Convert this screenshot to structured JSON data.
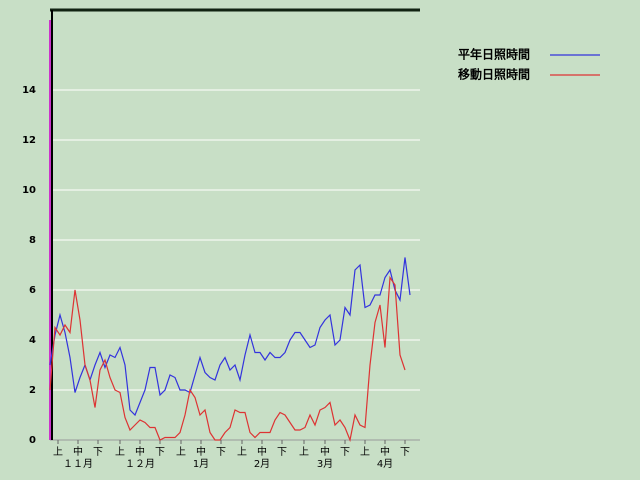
{
  "chart_data": {
    "type": "line",
    "series": [
      {
        "name": "平年日照時間",
        "color": "#3333dd",
        "values": [
          3.0,
          4.2,
          5.0,
          4.3,
          3.3,
          1.9,
          2.5,
          3.0,
          2.4,
          3.0,
          3.5,
          2.9,
          3.4,
          3.3,
          3.7,
          3.0,
          1.2,
          1.0,
          1.5,
          2.0,
          2.9,
          2.9,
          1.8,
          2.0,
          2.6,
          2.5,
          2.0,
          2.0,
          1.9,
          2.6,
          3.3,
          2.7,
          2.5,
          2.4,
          3.0,
          3.3,
          2.8,
          3.0,
          2.4,
          3.4,
          4.2,
          3.5,
          3.5,
          3.2,
          3.5,
          3.3,
          3.3,
          3.5,
          4.0,
          4.3,
          4.3,
          4.0,
          3.7,
          3.8,
          4.5,
          4.8,
          5.0,
          3.8,
          4.0,
          5.3,
          5.0,
          6.8,
          7.0,
          5.3,
          5.4,
          5.8,
          5.8,
          6.5,
          6.8,
          6.0,
          5.6,
          7.3,
          5.8
        ]
      },
      {
        "name": "移動日照時間",
        "color": "#dd3333",
        "values": [
          2.0,
          4.5,
          4.2,
          4.6,
          4.3,
          6.0,
          4.8,
          3.0,
          2.4,
          1.3,
          2.8,
          3.2,
          2.5,
          2.0,
          1.9,
          0.9,
          0.4,
          0.6,
          0.8,
          0.7,
          0.5,
          0.5,
          0.0,
          0.1,
          0.1,
          0.1,
          0.3,
          1.0,
          2.0,
          1.7,
          1.0,
          1.2,
          0.3,
          0.0,
          0.0,
          0.3,
          0.5,
          1.2,
          1.1,
          1.1,
          0.3,
          0.1,
          0.3,
          0.3,
          0.3,
          0.8,
          1.1,
          1.0,
          0.7,
          0.4,
          0.4,
          0.5,
          1.0,
          0.6,
          1.2,
          1.3,
          1.5,
          0.6,
          0.8,
          0.5,
          0.0,
          1.0,
          0.6,
          0.5,
          3.0,
          4.7,
          5.4,
          3.7,
          6.5,
          6.2,
          3.4,
          2.8,
          null
        ]
      }
    ],
    "xlim": [
      0,
      74
    ],
    "xticks": [
      {
        "value": 1.6,
        "label": "上"
      },
      {
        "value": 5.6,
        "label": "中"
      },
      {
        "value": 9.6,
        "label": "下"
      },
      {
        "value": 14,
        "label": "上"
      },
      {
        "value": 18,
        "label": "中"
      },
      {
        "value": 22,
        "label": "下"
      },
      {
        "value": 26.2,
        "label": "上"
      },
      {
        "value": 30.2,
        "label": "中"
      },
      {
        "value": 34.2,
        "label": "下"
      },
      {
        "value": 38.4,
        "label": "上"
      },
      {
        "value": 42.4,
        "label": "中"
      },
      {
        "value": 46.4,
        "label": "下"
      },
      {
        "value": 50.8,
        "label": "上"
      },
      {
        "value": 55,
        "label": "中"
      },
      {
        "value": 59,
        "label": "下"
      },
      {
        "value": 63,
        "label": "上"
      },
      {
        "value": 67,
        "label": "中"
      },
      {
        "value": 71,
        "label": "下"
      }
    ],
    "month_labels": [
      {
        "value": 5.6,
        "label": "１１月"
      },
      {
        "value": 18,
        "label": "１２月"
      },
      {
        "value": 30.2,
        "label": "1月"
      },
      {
        "value": 42.4,
        "label": "2月"
      },
      {
        "value": 55,
        "label": "3月"
      },
      {
        "value": 67,
        "label": "4月"
      }
    ],
    "ylim": [
      0,
      17.2
    ],
    "yticks": [
      0,
      2,
      4,
      6,
      8,
      10,
      12,
      14
    ],
    "grid": true
  }
}
